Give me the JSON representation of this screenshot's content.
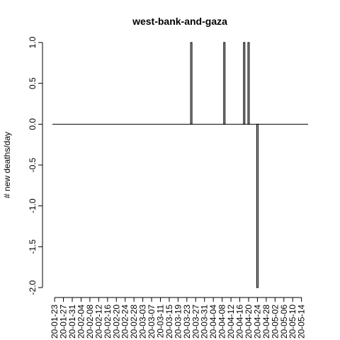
{
  "chart_data": {
    "type": "bar",
    "title": "west-bank-and-gaza",
    "xlabel": "",
    "ylabel": "# new deaths/day",
    "ylim": [
      -2.0,
      1.0
    ],
    "y_ticks": [
      "-2.0",
      "-1.5",
      "-1.0",
      "-0.5",
      "0.0",
      "0.5",
      "1.0"
    ],
    "x_tick_labels": [
      "20-01-23",
      "20-01-27",
      "20-01-31",
      "20-02-04",
      "20-02-08",
      "20-02-12",
      "20-02-16",
      "20-02-20",
      "20-02-24",
      "20-02-28",
      "20-03-03",
      "20-03-07",
      "20-03-11",
      "20-03-15",
      "20-03-19",
      "20-03-23",
      "20-03-27",
      "20-03-31",
      "20-04-04",
      "20-04-08",
      "20-04-12",
      "20-04-16",
      "20-04-20",
      "20-04-24",
      "20-04-28",
      "20-05-02",
      "20-05-06",
      "20-05-10",
      "20-05-14"
    ],
    "x_start": "2020-01-22",
    "x_end": "2020-05-17",
    "points": [
      {
        "date": "2020-03-25",
        "value": 1
      },
      {
        "date": "2020-04-09",
        "value": 1
      },
      {
        "date": "2020-04-18",
        "value": 1
      },
      {
        "date": "2020-04-20",
        "value": 1
      },
      {
        "date": "2020-04-24",
        "value": -2
      }
    ],
    "bar_fill": "#bebebe",
    "line_color": "#000000",
    "grid": false,
    "legend": false
  }
}
